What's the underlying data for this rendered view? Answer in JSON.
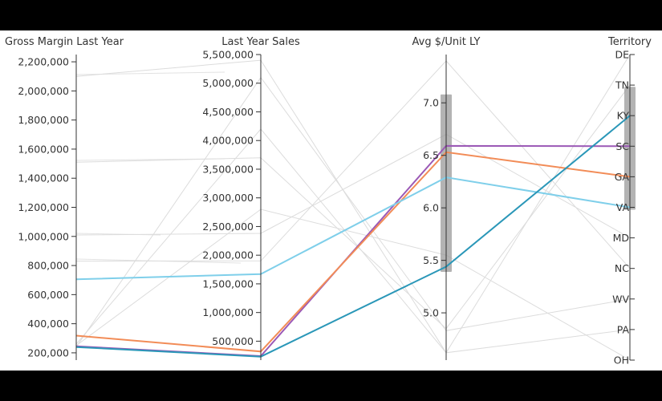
{
  "chart_data": {
    "type": "parallel-coordinates",
    "axes": [
      {
        "key": "gm",
        "title": "Gross Margin Last Year",
        "kind": "numeric",
        "domain": [
          150000,
          2250000
        ],
        "ticks": [
          {
            "value": 200000,
            "label": "200,000"
          },
          {
            "value": 400000,
            "label": "400,000"
          },
          {
            "value": 600000,
            "label": "600,000"
          },
          {
            "value": 800000,
            "label": "800,000"
          },
          {
            "value": 1000000,
            "label": "1,000,000"
          },
          {
            "value": 1200000,
            "label": "1,200,000"
          },
          {
            "value": 1400000,
            "label": "1,400,000"
          },
          {
            "value": 1600000,
            "label": "1,600,000"
          },
          {
            "value": 1800000,
            "label": "1,800,000"
          },
          {
            "value": 2000000,
            "label": "2,000,000"
          },
          {
            "value": 2200000,
            "label": "2,200,000"
          }
        ]
      },
      {
        "key": "sales",
        "title": "Last Year Sales",
        "kind": "numeric",
        "domain": [
          170000,
          5500000
        ],
        "ticks": [
          {
            "value": 500000,
            "label": "500,000"
          },
          {
            "value": 1000000,
            "label": "1,000,000"
          },
          {
            "value": 1500000,
            "label": "1,500,000"
          },
          {
            "value": 2000000,
            "label": "2,000,000"
          },
          {
            "value": 2500000,
            "label": "2,500,000"
          },
          {
            "value": 3000000,
            "label": "3,000,000"
          },
          {
            "value": 3500000,
            "label": "3,500,000"
          },
          {
            "value": 4000000,
            "label": "4,000,000"
          },
          {
            "value": 4500000,
            "label": "4,500,000"
          },
          {
            "value": 5000000,
            "label": "5,000,000"
          },
          {
            "value": 5500000,
            "label": "5,500,000"
          }
        ]
      },
      {
        "key": "avg",
        "title": "Avg $/Unit LY",
        "kind": "numeric",
        "domain": [
          4.55,
          7.46
        ],
        "ticks": [
          {
            "value": 5.0,
            "label": "5.0"
          },
          {
            "value": 5.5,
            "label": "5.5"
          },
          {
            "value": 6.0,
            "label": "6.0"
          },
          {
            "value": 6.5,
            "label": "6.5"
          },
          {
            "value": 7.0,
            "label": "7.0"
          }
        ]
      },
      {
        "key": "territory",
        "title": "Territory",
        "kind": "categorical",
        "categories": [
          "DE",
          "TN",
          "KY",
          "SC",
          "GA",
          "VA",
          "MD",
          "NC",
          "WV",
          "PA",
          "OH"
        ]
      }
    ],
    "brushes": [
      {
        "axis": "avg",
        "range": [
          5.39,
          7.08
        ]
      },
      {
        "axis": "territory",
        "range": [
          "KY",
          "VA"
        ]
      }
    ],
    "selected": [
      {
        "territory": "SC",
        "gm": 245000,
        "sales": 240000,
        "avg": 6.59,
        "color": "#9b59b6"
      },
      {
        "territory": "GA",
        "gm": 318000,
        "sales": 320000,
        "avg": 6.53,
        "color": "#f28c57"
      },
      {
        "territory": "VA",
        "gm": 705000,
        "sales": 1670000,
        "avg": 6.29,
        "color": "#7fcfea"
      },
      {
        "territory": "KY",
        "gm": 240000,
        "sales": 230000,
        "avg": 5.44,
        "color": "#2a97b8"
      }
    ],
    "context": [
      {
        "territory": "DE",
        "gm": 2100000,
        "sales": 5400000,
        "avg": 4.62
      },
      {
        "territory": "TN",
        "gm": 1510000,
        "sales": 3700000,
        "avg": 4.85
      },
      {
        "territory": "MD",
        "gm": 1010000,
        "sales": 2380000,
        "avg": 6.7
      },
      {
        "territory": "NC",
        "gm": 830000,
        "sales": 1900000,
        "avg": 7.4
      },
      {
        "territory": "WV",
        "gm": 240000,
        "sales": 5100000,
        "avg": 4.83
      },
      {
        "territory": "PA",
        "gm": 260000,
        "sales": 4200000,
        "avg": 4.62
      },
      {
        "territory": "OH",
        "gm": 250000,
        "sales": 2800000,
        "avg": 5.55
      }
    ]
  }
}
